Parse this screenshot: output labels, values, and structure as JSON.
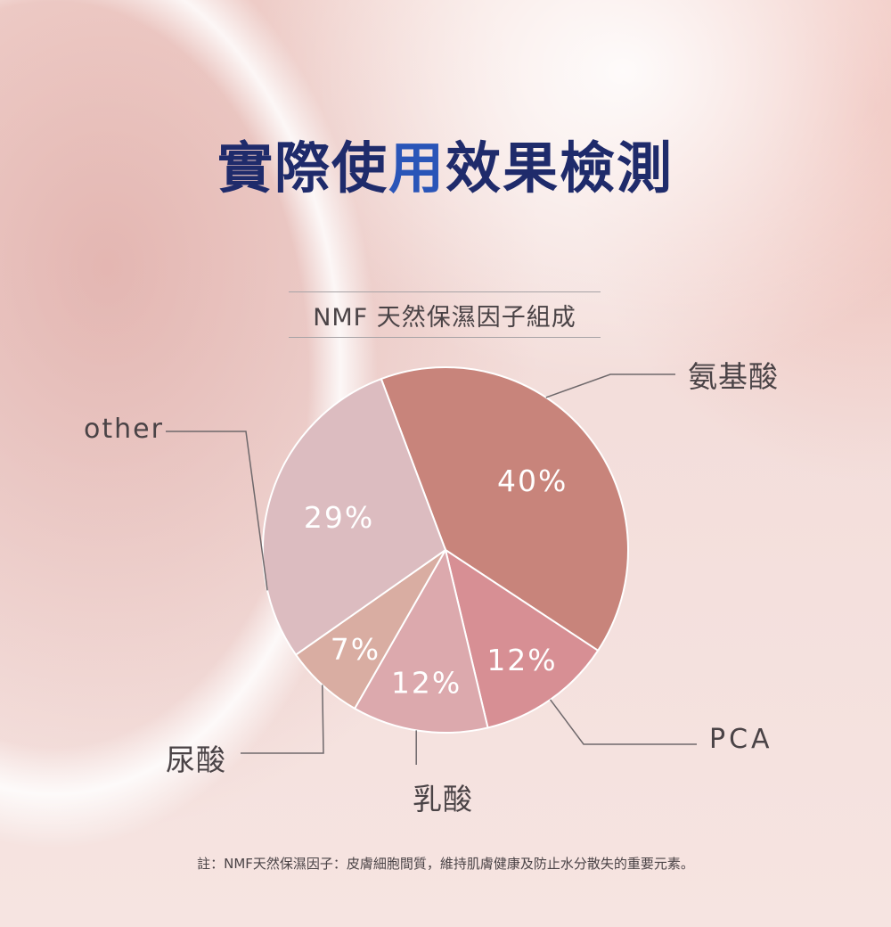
{
  "title": {
    "part1": "實際使",
    "part2": "用",
    "part3": "效果檢測"
  },
  "chart_data": {
    "type": "pie",
    "title": "NMF 天然保濕因子組成",
    "slices": [
      {
        "label": "氨基酸",
        "value": 40,
        "value_label": "40%",
        "color": "#c8847b"
      },
      {
        "label": "PCA",
        "value": 12,
        "value_label": "12%",
        "color": "#d78f94"
      },
      {
        "label": "乳酸",
        "value": 12,
        "value_label": "12%",
        "color": "#dca9ad"
      },
      {
        "label": "尿酸",
        "value": 7,
        "value_label": "7%",
        "color": "#d9ada2"
      },
      {
        "label": "other",
        "value": 29,
        "value_label": "29%",
        "color": "#dcbcc0"
      }
    ]
  },
  "footnote": "註：NMF天然保濕因子：皮膚細胞間質，維持肌膚健康及防止水分散失的重要元素。"
}
